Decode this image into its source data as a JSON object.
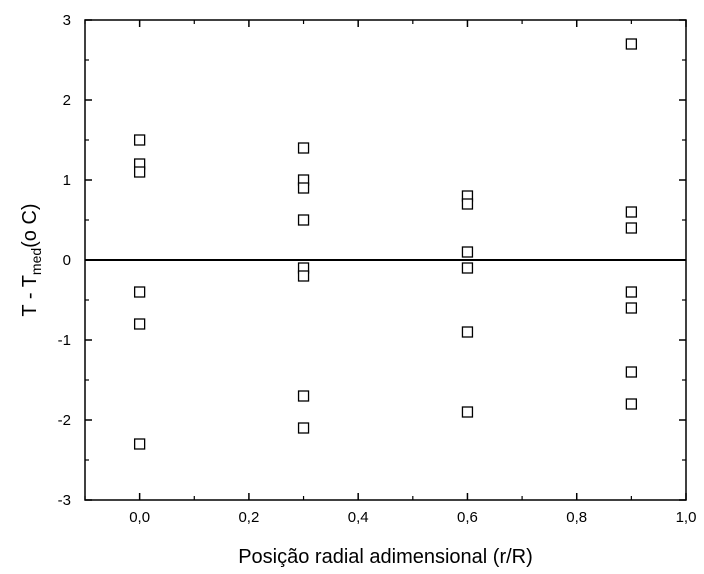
{
  "chart_data": {
    "type": "scatter",
    "title": "",
    "xlabel": "Posição radial adimensional (r/R)",
    "ylabel": {
      "prefix": "T - T",
      "subscript": "med",
      "suffix": "(o C)"
    },
    "xlim": [
      -0.1,
      1.0
    ],
    "ylim": [
      -3,
      3
    ],
    "xticks": [
      0.0,
      0.2,
      0.4,
      0.6,
      0.8,
      1.0
    ],
    "xtick_labels": [
      "0,0",
      "0,2",
      "0,4",
      "0,6",
      "0,8",
      "1,0"
    ],
    "yticks": [
      -3,
      -2,
      -1,
      0,
      1,
      2,
      3
    ],
    "ytick_labels": [
      "-3",
      "-2",
      "-1",
      "0",
      "1",
      "2",
      "3"
    ],
    "reference_line_y": 0,
    "marker": "open-square",
    "grid": false,
    "series": [
      {
        "points": [
          {
            "x": 0.0,
            "y": 1.5
          },
          {
            "x": 0.0,
            "y": 1.2
          },
          {
            "x": 0.0,
            "y": 1.1
          },
          {
            "x": 0.0,
            "y": -0.4
          },
          {
            "x": 0.0,
            "y": -0.8
          },
          {
            "x": 0.0,
            "y": -2.3
          },
          {
            "x": 0.3,
            "y": 1.4
          },
          {
            "x": 0.3,
            "y": 1.0
          },
          {
            "x": 0.3,
            "y": 0.9
          },
          {
            "x": 0.3,
            "y": 0.5
          },
          {
            "x": 0.3,
            "y": -0.1
          },
          {
            "x": 0.3,
            "y": -0.2
          },
          {
            "x": 0.3,
            "y": -1.7
          },
          {
            "x": 0.3,
            "y": -2.1
          },
          {
            "x": 0.6,
            "y": 0.8
          },
          {
            "x": 0.6,
            "y": 0.7
          },
          {
            "x": 0.6,
            "y": 0.1
          },
          {
            "x": 0.6,
            "y": -0.1
          },
          {
            "x": 0.6,
            "y": -0.9
          },
          {
            "x": 0.6,
            "y": -1.9
          },
          {
            "x": 0.9,
            "y": 2.7
          },
          {
            "x": 0.9,
            "y": 0.6
          },
          {
            "x": 0.9,
            "y": 0.4
          },
          {
            "x": 0.9,
            "y": -0.4
          },
          {
            "x": 0.9,
            "y": -0.6
          },
          {
            "x": 0.9,
            "y": -1.4
          },
          {
            "x": 0.9,
            "y": -1.8
          }
        ]
      }
    ]
  }
}
